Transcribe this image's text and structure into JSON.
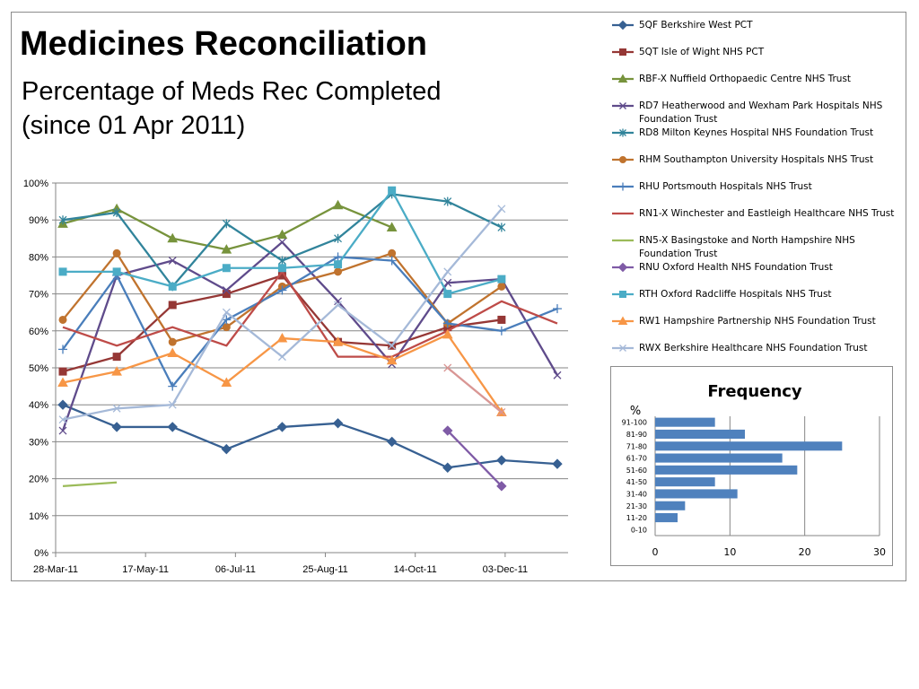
{
  "title": "Medicines Reconciliation",
  "subtitle_line1": "Percentage of Meds Rec Completed",
  "subtitle_line2": "(since 01 Apr 2011)",
  "chart_data": [
    {
      "type": "line",
      "x_tick_labels": [
        "28-Mar-11",
        "17-May-11",
        "06-Jul-11",
        "25-Aug-11",
        "14-Oct-11",
        "03-Dec-11"
      ],
      "y_tick_labels": [
        "0%",
        "10%",
        "20%",
        "30%",
        "40%",
        "50%",
        "60%",
        "70%",
        "80%",
        "90%",
        "100%"
      ],
      "ylim": [
        0,
        100
      ],
      "xlim": [
        "2011-03-28",
        "2012-01-07"
      ],
      "grid": true,
      "legend_position": "right",
      "series": [
        {
          "name": "5QF Berkshire West PCT",
          "color": "#376092",
          "marker": "diamond",
          "points": [
            [
              "2011-04-01",
              40
            ],
            [
              "2011-05-01",
              34
            ],
            [
              "2011-06-01",
              34
            ],
            [
              "2011-07-01",
              28
            ],
            [
              "2011-08-01",
              34
            ],
            [
              "2011-09-01",
              35
            ],
            [
              "2011-10-01",
              30
            ],
            [
              "2011-11-01",
              23
            ],
            [
              "2011-12-01",
              25
            ],
            [
              "2012-01-01",
              24
            ]
          ]
        },
        {
          "name": "5QT Isle of Wight NHS PCT",
          "color": "#953735",
          "marker": "square",
          "points": [
            [
              "2011-04-01",
              49
            ],
            [
              "2011-05-01",
              53
            ],
            [
              "2011-06-01",
              67
            ],
            [
              "2011-07-01",
              70
            ],
            [
              "2011-08-01",
              75
            ],
            [
              "2011-09-01",
              57
            ],
            [
              "2011-10-01",
              56
            ],
            [
              "2011-11-01",
              61
            ],
            [
              "2011-12-01",
              63
            ]
          ]
        },
        {
          "name": "RBF-X Nuffield Orthopaedic Centre NHS Trust",
          "color": "#77933c",
          "marker": "triangle",
          "points": [
            [
              "2011-04-01",
              89
            ],
            [
              "2011-05-01",
              93
            ],
            [
              "2011-06-01",
              85
            ],
            [
              "2011-07-01",
              82
            ],
            [
              "2011-08-01",
              86
            ],
            [
              "2011-09-01",
              94
            ],
            [
              "2011-10-01",
              88
            ]
          ]
        },
        {
          "name": "RD7 Heatherwood and Wexham Park Hospitals NHS Foundation Trust",
          "color": "#5f4b8b",
          "marker": "x",
          "points": [
            [
              "2011-04-01",
              33
            ],
            [
              "2011-05-01",
              75
            ],
            [
              "2011-06-01",
              79
            ],
            [
              "2011-07-01",
              71
            ],
            [
              "2011-08-01",
              84
            ],
            [
              "2011-09-01",
              68
            ],
            [
              "2011-10-01",
              51
            ],
            [
              "2011-11-01",
              73
            ],
            [
              "2011-12-01",
              74
            ],
            [
              "2012-01-01",
              48
            ]
          ]
        },
        {
          "name": "RD8 Milton Keynes Hospital NHS Foundation Trust",
          "color": "#31849b",
          "marker": "star",
          "points": [
            [
              "2011-04-01",
              90
            ],
            [
              "2011-05-01",
              92
            ],
            [
              "2011-06-01",
              72
            ],
            [
              "2011-07-01",
              89
            ],
            [
              "2011-08-01",
              79
            ],
            [
              "2011-09-01",
              85
            ],
            [
              "2011-10-01",
              97
            ],
            [
              "2011-11-01",
              95
            ],
            [
              "2011-12-01",
              88
            ]
          ]
        },
        {
          "name": "RHM Southampton University Hospitals NHS Trust",
          "color": "#c0732e",
          "marker": "circle",
          "points": [
            [
              "2011-04-01",
              63
            ],
            [
              "2011-05-01",
              81
            ],
            [
              "2011-06-01",
              57
            ],
            [
              "2011-07-01",
              61
            ],
            [
              "2011-08-01",
              72
            ],
            [
              "2011-09-01",
              76
            ],
            [
              "2011-10-01",
              81
            ],
            [
              "2011-11-01",
              62
            ],
            [
              "2011-12-01",
              72
            ]
          ]
        },
        {
          "name": "RHU Portsmouth Hospitals NHS Trust",
          "color": "#4a7ebb",
          "marker": "plus",
          "points": [
            [
              "2011-04-01",
              55
            ],
            [
              "2011-05-01",
              75
            ],
            [
              "2011-06-01",
              45
            ],
            [
              "2011-07-01",
              63
            ],
            [
              "2011-08-01",
              71
            ],
            [
              "2011-09-01",
              80
            ],
            [
              "2011-10-01",
              79
            ],
            [
              "2011-11-01",
              62
            ],
            [
              "2011-12-01",
              60
            ],
            [
              "2012-01-01",
              66
            ]
          ]
        },
        {
          "name": "RN1-X Winchester and Eastleigh Healthcare NHS Trust",
          "color": "#be4b48",
          "marker": "none",
          "points": [
            [
              "2011-04-01",
              61
            ],
            [
              "2011-05-01",
              56
            ],
            [
              "2011-06-01",
              61
            ],
            [
              "2011-07-01",
              56
            ],
            [
              "2011-08-01",
              76
            ],
            [
              "2011-09-01",
              53
            ],
            [
              "2011-10-01",
              53
            ],
            [
              "2011-11-01",
              60
            ],
            [
              "2011-12-01",
              68
            ],
            [
              "2012-01-01",
              62
            ]
          ]
        },
        {
          "name": "RN5-X Basingstoke and North Hampshire NHS Foundation Trust",
          "color": "#9bbb59",
          "marker": "none",
          "points": [
            [
              "2011-04-01",
              18
            ],
            [
              "2011-05-01",
              19
            ]
          ]
        },
        {
          "name": "RNU Oxford Health NHS Foundation Trust",
          "color": "#7f5ba6",
          "marker": "diamond",
          "points": [
            [
              "2011-11-01",
              33
            ],
            [
              "2011-12-01",
              18
            ]
          ]
        },
        {
          "name": "RTH Oxford Radcliffe Hospitals NHS Trust",
          "color": "#4bacc6",
          "marker": "square",
          "points": [
            [
              "2011-04-01",
              76
            ],
            [
              "2011-05-01",
              76
            ],
            [
              "2011-06-01",
              72
            ],
            [
              "2011-07-01",
              77
            ],
            [
              "2011-08-01",
              77
            ],
            [
              "2011-09-01",
              78
            ],
            [
              "2011-10-01",
              98
            ],
            [
              "2011-11-01",
              70
            ],
            [
              "2011-12-01",
              74
            ]
          ]
        },
        {
          "name": "RW1 Hampshire Partnership NHS Foundation Trust",
          "color": "#f79646",
          "marker": "triangle",
          "points": [
            [
              "2011-04-01",
              46
            ],
            [
              "2011-05-01",
              49
            ],
            [
              "2011-06-01",
              54
            ],
            [
              "2011-07-01",
              46
            ],
            [
              "2011-08-01",
              58
            ],
            [
              "2011-09-01",
              57
            ],
            [
              "2011-10-01",
              52
            ],
            [
              "2011-11-01",
              59
            ],
            [
              "2011-12-01",
              38
            ]
          ]
        },
        {
          "name": "RWX Berkshire Healthcare NHS Foundation Trust",
          "color": "#a5b9d8",
          "marker": "x",
          "points": [
            [
              "2011-04-01",
              36
            ],
            [
              "2011-05-01",
              39
            ],
            [
              "2011-06-01",
              40
            ],
            [
              "2011-07-01",
              65
            ],
            [
              "2011-08-01",
              53
            ],
            [
              "2011-09-01",
              67
            ],
            [
              "2011-10-01",
              56
            ],
            [
              "2011-11-01",
              76
            ],
            [
              "2011-12-01",
              93
            ]
          ]
        },
        {
          "name": "",
          "color": "#d99694",
          "marker": "x",
          "points": [
            [
              "2011-11-01",
              50
            ],
            [
              "2011-12-01",
              38
            ]
          ]
        }
      ]
    },
    {
      "type": "bar",
      "orientation": "horizontal",
      "title": "Frequency",
      "unit_label": "%",
      "categories": [
        "91-100",
        "81-90",
        "71-80",
        "61-70",
        "51-60",
        "41-50",
        "31-40",
        "21-30",
        "11-20",
        "0-10"
      ],
      "values": [
        8,
        12,
        25,
        17,
        19,
        8,
        11,
        4,
        3,
        0
      ],
      "xlim": [
        0,
        30
      ],
      "x_tick_labels": [
        "0",
        "10",
        "20",
        "30"
      ],
      "grid": true,
      "bar_color": "#4f81bd"
    }
  ]
}
